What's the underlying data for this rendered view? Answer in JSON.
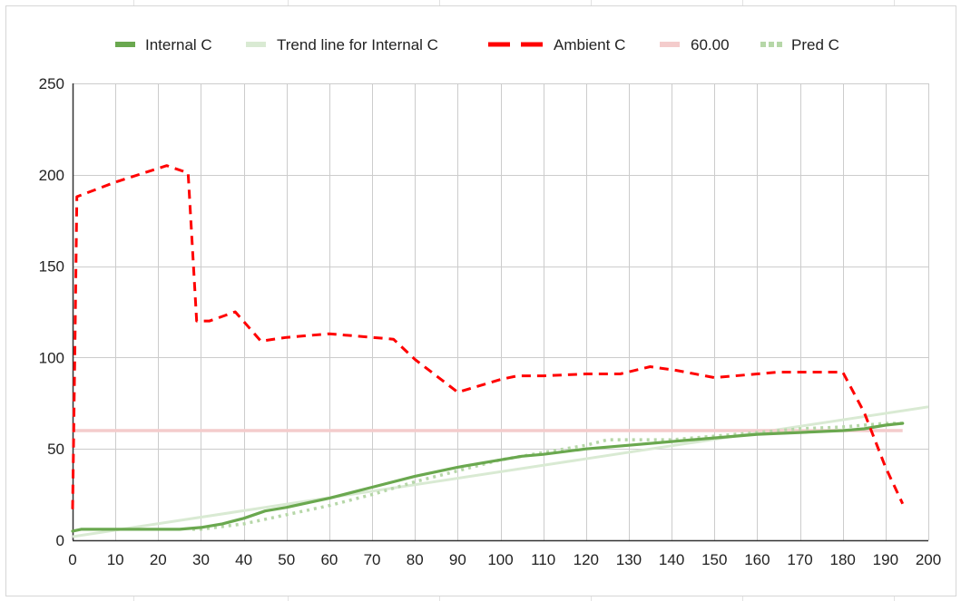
{
  "chart_data": {
    "type": "line",
    "xlim": [
      0,
      200
    ],
    "ylim": [
      0,
      250
    ],
    "x_ticks": [
      "0",
      "10",
      "20",
      "30",
      "40",
      "50",
      "60",
      "70",
      "80",
      "90",
      "100",
      "110",
      "120",
      "130",
      "140",
      "150",
      "160",
      "170",
      "180",
      "190",
      "200"
    ],
    "y_ticks": [
      "0",
      "50",
      "100",
      "150",
      "200",
      "250"
    ],
    "grid": true,
    "legend_position": "top",
    "series": [
      {
        "name": "Internal C",
        "color": "#6aa84f",
        "style": "solid",
        "points": [
          [
            0,
            5
          ],
          [
            2,
            6
          ],
          [
            10,
            6
          ],
          [
            20,
            6
          ],
          [
            25,
            6
          ],
          [
            30,
            7
          ],
          [
            35,
            9
          ],
          [
            40,
            12
          ],
          [
            45,
            16
          ],
          [
            50,
            18
          ],
          [
            60,
            23
          ],
          [
            70,
            29
          ],
          [
            80,
            35
          ],
          [
            90,
            40
          ],
          [
            100,
            44
          ],
          [
            105,
            46
          ],
          [
            110,
            47
          ],
          [
            120,
            50
          ],
          [
            130,
            52
          ],
          [
            140,
            54
          ],
          [
            150,
            56
          ],
          [
            160,
            58
          ],
          [
            170,
            59
          ],
          [
            180,
            60
          ],
          [
            185,
            61
          ],
          [
            190,
            63
          ],
          [
            194,
            64
          ]
        ]
      },
      {
        "name": "Trend line for Internal C",
        "color": "#d9ead3",
        "style": "solid",
        "points": [
          [
            0,
            2
          ],
          [
            200,
            73
          ]
        ]
      },
      {
        "name": "Ambient C",
        "color": "#ff0000",
        "style": "dashed",
        "points": [
          [
            0,
            17
          ],
          [
            0.5,
            100
          ],
          [
            1,
            188
          ],
          [
            10,
            196
          ],
          [
            22,
            205
          ],
          [
            27,
            201
          ],
          [
            29,
            120
          ],
          [
            32,
            120
          ],
          [
            38,
            125
          ],
          [
            44,
            109
          ],
          [
            50,
            111
          ],
          [
            60,
            113
          ],
          [
            70,
            111
          ],
          [
            75,
            110
          ],
          [
            80,
            99
          ],
          [
            90,
            81
          ],
          [
            100,
            88
          ],
          [
            104,
            90
          ],
          [
            110,
            90
          ],
          [
            120,
            91
          ],
          [
            128,
            91
          ],
          [
            135,
            95
          ],
          [
            141,
            93
          ],
          [
            150,
            89
          ],
          [
            160,
            91
          ],
          [
            165,
            92
          ],
          [
            170,
            92
          ],
          [
            180,
            92
          ],
          [
            185,
            70
          ],
          [
            190,
            40
          ],
          [
            194,
            20
          ]
        ]
      },
      {
        "name": "60.00",
        "color": "#f4cccc",
        "style": "solid",
        "points": [
          [
            0,
            60
          ],
          [
            194,
            60
          ]
        ]
      },
      {
        "name": "Pred C",
        "color": "#b6d7a8",
        "style": "dotted",
        "points": [
          [
            28,
            6
          ],
          [
            30,
            6
          ],
          [
            40,
            9
          ],
          [
            50,
            14
          ],
          [
            60,
            19
          ],
          [
            70,
            25
          ],
          [
            80,
            32
          ],
          [
            90,
            38
          ],
          [
            100,
            44
          ],
          [
            110,
            48
          ],
          [
            120,
            52
          ],
          [
            125,
            55
          ],
          [
            130,
            55
          ],
          [
            140,
            55
          ],
          [
            150,
            57
          ],
          [
            160,
            59
          ],
          [
            170,
            61
          ],
          [
            180,
            62
          ],
          [
            190,
            64
          ],
          [
            194,
            64
          ]
        ]
      }
    ]
  }
}
